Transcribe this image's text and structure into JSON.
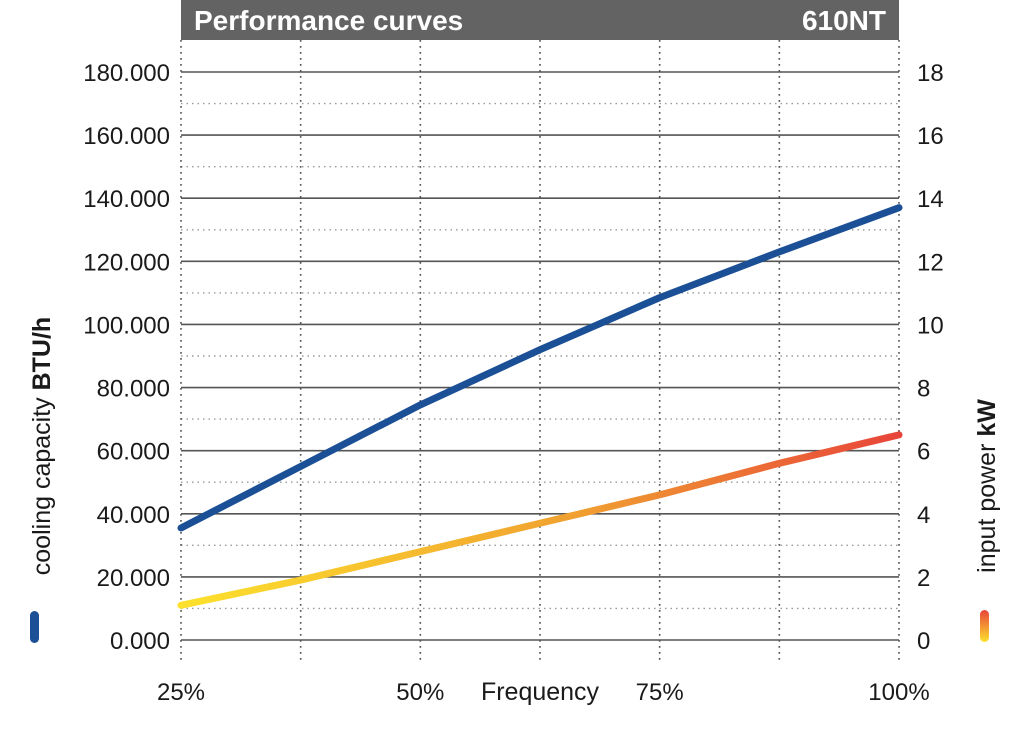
{
  "header": {
    "title": "Performance curves",
    "model": "610NT"
  },
  "chart_data": {
    "type": "line",
    "x_ticks": [
      "25%",
      "50%",
      "75%",
      "100%"
    ],
    "x_values": [
      25,
      50,
      75,
      100
    ],
    "xlabel": "Frequency",
    "xlim": [
      25,
      100
    ],
    "y_left": {
      "label": "cooling capacity",
      "unit": "BTU/h",
      "ticks": [
        "0.000",
        "20.000",
        "40.000",
        "60.000",
        "80.000",
        "100.000",
        "120.000",
        "140.000",
        "160.000",
        "180.000"
      ],
      "lim": [
        0,
        180000
      ]
    },
    "y_right": {
      "label": "input power",
      "unit": "kW",
      "ticks": [
        "0",
        "2",
        "4",
        "6",
        "8",
        "10",
        "12",
        "14",
        "16",
        "18"
      ],
      "lim": [
        0,
        18
      ]
    },
    "grid": {
      "horizontal": "solid",
      "vertical": "dotted"
    },
    "series": [
      {
        "axis": "left",
        "color": "#1b4f96",
        "points": [
          [
            25,
            35500
          ],
          [
            37.5,
            55000
          ],
          [
            50,
            74500
          ],
          [
            62.5,
            92000
          ],
          [
            75,
            108500
          ],
          [
            87.5,
            123000
          ],
          [
            100,
            137000
          ]
        ]
      },
      {
        "axis": "right",
        "gradient": [
          "#fde12d",
          "#f0a030",
          "#e8453a"
        ],
        "points": [
          [
            25,
            1.1
          ],
          [
            37.5,
            1.9
          ],
          [
            50,
            2.8
          ],
          [
            62.5,
            3.7
          ],
          [
            75,
            4.6
          ],
          [
            87.5,
            5.6
          ],
          [
            100,
            6.5
          ]
        ]
      }
    ]
  }
}
